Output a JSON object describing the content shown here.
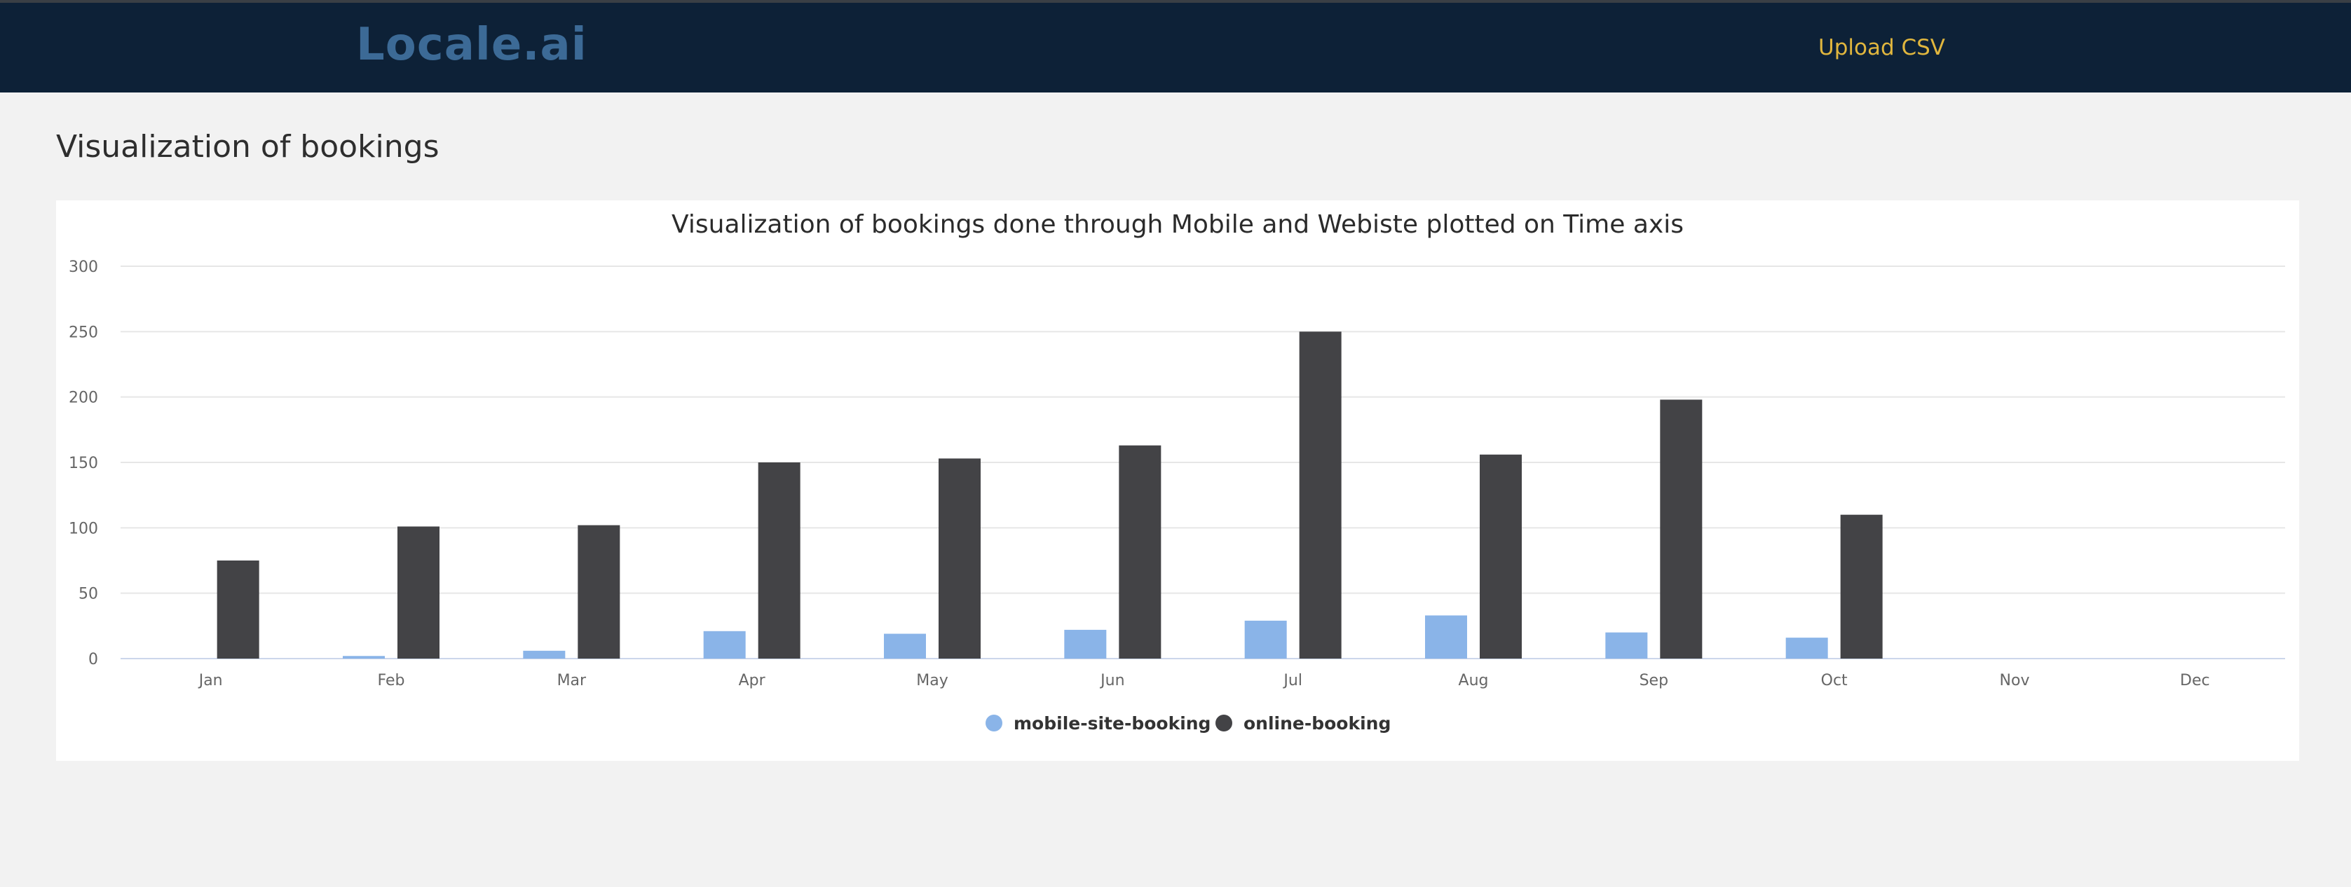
{
  "header": {
    "brand": "Locale.ai",
    "upload_label": "Upload CSV"
  },
  "main": {
    "title": "Visualization of bookings"
  },
  "colors": {
    "nav_bg": "#0d2137",
    "brand": "#3c6a96",
    "upload": "#e0b63e",
    "mobile": "#8ab4e8",
    "online": "#434346"
  },
  "chart_data": {
    "type": "bar",
    "title": "Visualization of bookings done through Mobile and Webiste plotted on Time axis",
    "xlabel": "",
    "ylabel": "",
    "categories": [
      "Jan",
      "Feb",
      "Mar",
      "Apr",
      "May",
      "Jun",
      "Jul",
      "Aug",
      "Sep",
      "Oct",
      "Nov",
      "Dec"
    ],
    "ylim": [
      0,
      300
    ],
    "yticks": [
      0,
      50,
      100,
      150,
      200,
      250,
      300
    ],
    "grid": true,
    "legend": "bottom-center",
    "series": [
      {
        "name": "mobile-site-booking",
        "color": "#8ab4e8",
        "values": [
          0,
          2,
          6,
          21,
          19,
          22,
          29,
          33,
          20,
          16,
          0,
          0
        ]
      },
      {
        "name": "online-booking",
        "color": "#434346",
        "values": [
          75,
          101,
          102,
          150,
          153,
          163,
          250,
          156,
          198,
          110,
          0,
          0
        ]
      }
    ]
  }
}
